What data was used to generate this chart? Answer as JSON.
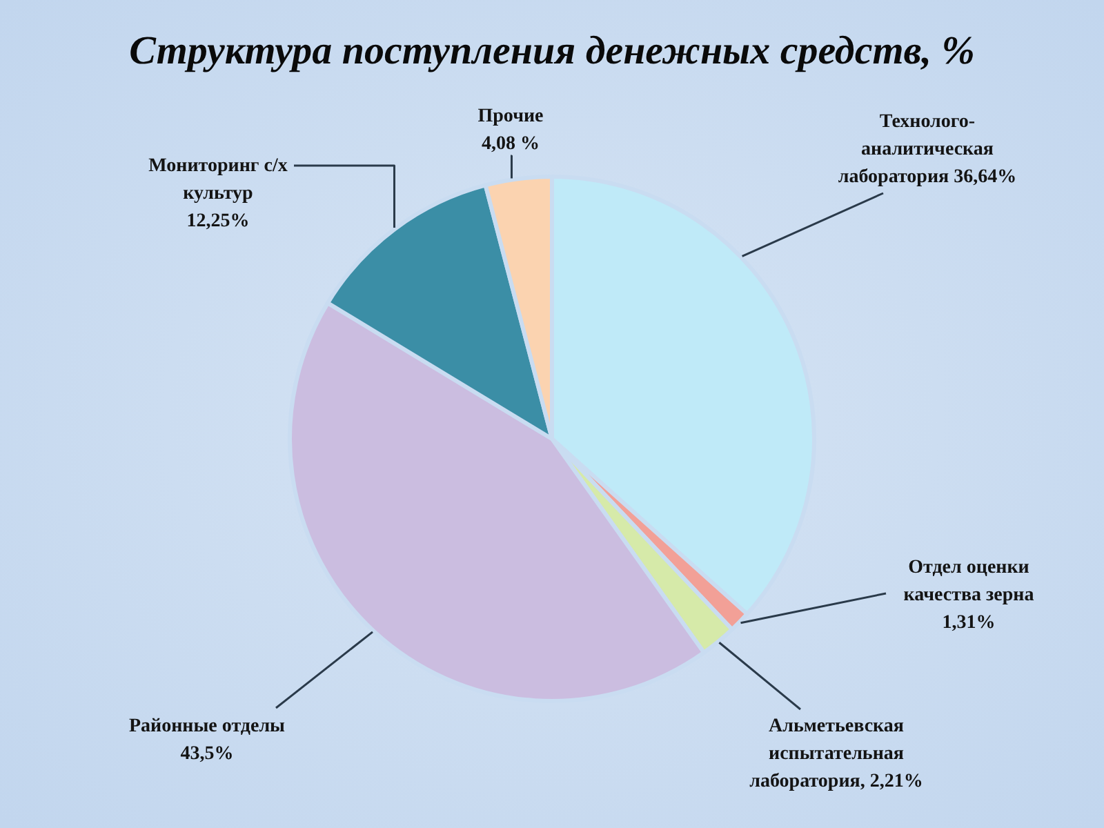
{
  "chart_data": {
    "type": "pie",
    "title": "Структура поступления денежных средств, %",
    "categories": [
      "Технолого-аналитическая лаборатория",
      "Отдел оценки качества зерна",
      "Альметьевская испытательная лаборатория",
      "Районные отделы",
      "Мониторинг с/х культур",
      "Прочие"
    ],
    "values": [
      36.64,
      1.31,
      2.21,
      43.5,
      12.25,
      4.08
    ],
    "value_labels": [
      "36,64%",
      "1,31%",
      "2,21%",
      "43,5%",
      "12,25%",
      "4,08 %"
    ],
    "colors": [
      "#bfeaf8",
      "#f2a097",
      "#d6eaa9",
      "#cbbde0",
      "#3b8ea6",
      "#fbd3b0"
    ]
  }
}
